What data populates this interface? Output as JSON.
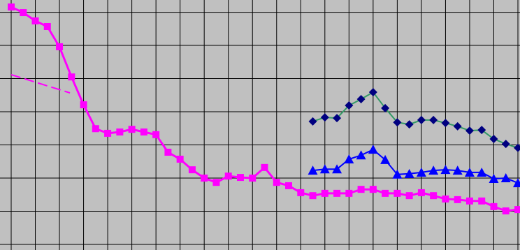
{
  "chart_data": {
    "type": "line",
    "xlim": [
      0,
      42
    ],
    "ylim": [
      0,
      7.37
    ],
    "xticks": [
      0,
      2,
      4,
      6,
      8,
      10,
      12,
      14,
      16,
      18,
      20,
      22,
      24,
      26,
      28,
      30,
      32,
      34,
      36,
      38,
      40,
      42
    ],
    "yticks": [
      0,
      1,
      2,
      3,
      4,
      5,
      6,
      7
    ],
    "grid": true,
    "series": [
      {
        "color": "#ff00ff",
        "marker": "square",
        "x": [
          0,
          1,
          2,
          3,
          4,
          5,
          6,
          7,
          8,
          9,
          10,
          11,
          12,
          13,
          14,
          15,
          16,
          17,
          18,
          19,
          20,
          21,
          22,
          23,
          24,
          25,
          26,
          27,
          28,
          29,
          30,
          31,
          32,
          33,
          34,
          35,
          36,
          37,
          38,
          39,
          40,
          41,
          42
        ],
        "values": [
          7.16,
          6.99,
          6.74,
          6.57,
          5.96,
          5.05,
          4.21,
          3.49,
          3.35,
          3.39,
          3.47,
          3.39,
          3.31,
          2.78,
          2.57,
          2.25,
          2.0,
          1.87,
          2.06,
          2.02,
          2.0,
          2.32,
          1.87,
          1.77,
          1.56,
          1.47,
          1.54,
          1.54,
          1.54,
          1.66,
          1.66,
          1.54,
          1.54,
          1.47,
          1.56,
          1.47,
          1.37,
          1.35,
          1.31,
          1.31,
          1.14,
          1.01,
          1.05
        ]
      },
      {
        "color": "#339966",
        "marker": "diamond",
        "marker_color": "#000080",
        "x": [
          25,
          26,
          27,
          28,
          29,
          30,
          31,
          32,
          33,
          34,
          35,
          36,
          37,
          38,
          39,
          40,
          41,
          42
        ],
        "values": [
          3.71,
          3.83,
          3.81,
          4.19,
          4.38,
          4.59,
          4.11,
          3.68,
          3.62,
          3.75,
          3.75,
          3.66,
          3.56,
          3.43,
          3.45,
          3.18,
          3.03,
          2.91
        ]
      },
      {
        "color": "#0000ff",
        "marker": "triangle",
        "x": [
          25,
          26,
          27,
          28,
          29,
          30,
          31,
          32,
          33,
          34,
          35,
          36,
          37,
          38,
          39,
          40,
          41,
          42
        ],
        "values": [
          2.23,
          2.27,
          2.27,
          2.57,
          2.69,
          2.86,
          2.55,
          2.11,
          2.13,
          2.17,
          2.23,
          2.25,
          2.23,
          2.17,
          2.17,
          1.98,
          2.0,
          1.85
        ]
      },
      {
        "color": "#ff00ff",
        "dashed": true,
        "x": [
          0,
          4.87
        ],
        "values": [
          5.12,
          4.57
        ]
      }
    ]
  }
}
